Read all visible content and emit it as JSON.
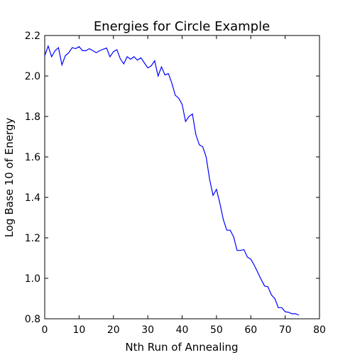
{
  "chart_data": {
    "type": "line",
    "title": "Energies for Circle Example",
    "xlabel": "Nth Run of Annealing",
    "ylabel": "Log Base 10 of Energy",
    "xlim": [
      0,
      80
    ],
    "ylim": [
      0.8,
      2.2
    ],
    "xticks": [
      0,
      10,
      20,
      30,
      40,
      50,
      60,
      70,
      80
    ],
    "yticks": [
      0.8,
      1.0,
      1.2,
      1.4,
      1.6,
      1.8,
      2.0,
      2.2
    ],
    "xtick_labels": [
      "0",
      "10",
      "20",
      "30",
      "40",
      "50",
      "60",
      "70",
      "80"
    ],
    "ytick_labels": [
      "0.8",
      "1.0",
      "1.2",
      "1.4",
      "1.6",
      "1.8",
      "2.0",
      "2.2"
    ],
    "grid": false,
    "line_color": "#0000ff",
    "series": [
      {
        "x": [
          0,
          1,
          2,
          3,
          4,
          5,
          6,
          7,
          8,
          9,
          10,
          11,
          12,
          13,
          14,
          15,
          16,
          17,
          18,
          19,
          20,
          21,
          22,
          23,
          24,
          25,
          26,
          27,
          28,
          29,
          30,
          31,
          32,
          33,
          34,
          35,
          36,
          37,
          38,
          39,
          40,
          41,
          42,
          43,
          44,
          45,
          46,
          47,
          48,
          49,
          50,
          51,
          52,
          53,
          54,
          55,
          56,
          57,
          58,
          59,
          60,
          61,
          62,
          63,
          64,
          65,
          66,
          67,
          68,
          69,
          70,
          71,
          72,
          73,
          74
        ],
        "values": [
          2.1,
          2.148,
          2.095,
          2.125,
          2.14,
          2.055,
          2.1,
          2.115,
          2.14,
          2.135,
          2.145,
          2.125,
          2.125,
          2.135,
          2.125,
          2.115,
          2.125,
          2.132,
          2.138,
          2.095,
          2.12,
          2.13,
          2.085,
          2.06,
          2.095,
          2.083,
          2.095,
          2.078,
          2.09,
          2.065,
          2.04,
          2.05,
          2.075,
          2.0,
          2.045,
          2.005,
          2.012,
          1.965,
          1.905,
          1.89,
          1.86,
          1.775,
          1.8,
          1.812,
          1.71,
          1.66,
          1.65,
          1.6,
          1.49,
          1.41,
          1.44,
          1.37,
          1.29,
          1.238,
          1.238,
          1.205,
          1.138,
          1.138,
          1.142,
          1.105,
          1.095,
          1.065,
          1.03,
          0.995,
          0.962,
          0.958,
          0.918,
          0.9,
          0.855,
          0.855,
          0.835,
          0.832,
          0.825,
          0.825,
          0.818
        ]
      }
    ]
  }
}
